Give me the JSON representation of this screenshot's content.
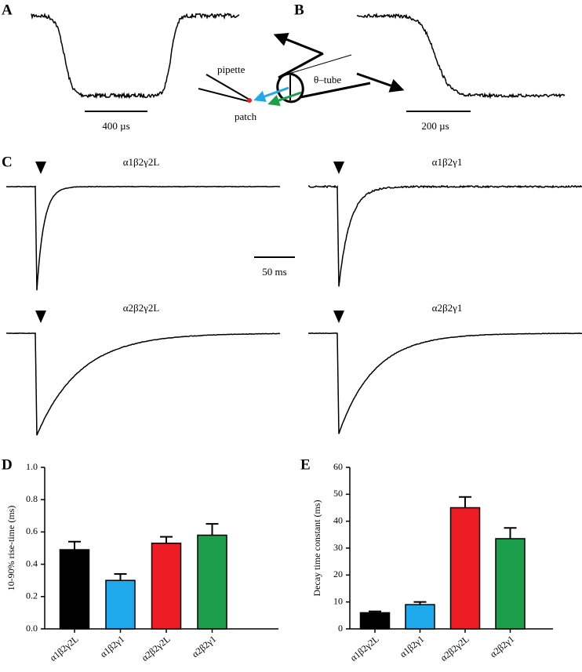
{
  "panel_labels": [
    "A",
    "B",
    "C",
    "D",
    "E"
  ],
  "diagram": {
    "pipette": "pipette",
    "patch": "patch",
    "tube": "θ–tube"
  },
  "scale_bars": [
    "400 µs",
    "200 µs",
    "50 ms"
  ],
  "traces": [
    "α1β2γ2L",
    "α1β2γ1",
    "α2β2γ2L",
    "α2β2γ1"
  ],
  "chart_data": [
    {
      "type": "bar",
      "ylabel": "10-90% rise-time (ms)",
      "categories": [
        "α1β2γ2L",
        "α1β2γ1",
        "α2β2γ2L",
        "α2β2γ1"
      ],
      "values": [
        0.49,
        0.3,
        0.53,
        0.58
      ],
      "errors": [
        0.05,
        0.04,
        0.04,
        0.07
      ],
      "colors": [
        "#000000",
        "#1fa9ec",
        "#ee1c25",
        "#1c9f4a"
      ],
      "ylim": [
        0,
        1.0
      ],
      "yticks": [
        {
          "value": 0,
          "label": "0.0"
        },
        0.2,
        0.4,
        0.6,
        0.8,
        {
          "value": 1.0,
          "label": "1.0"
        }
      ]
    },
    {
      "type": "bar",
      "ylabel": "Decay time constant (ms)",
      "categories": [
        "α1β2γ2L",
        "α1β2γ1",
        "α2β2γ2L",
        "α2β2γ1"
      ],
      "values": [
        6,
        9,
        45,
        33.5
      ],
      "errors": [
        0.5,
        1,
        4,
        4
      ],
      "colors": [
        "#000000",
        "#1fa9ec",
        "#ee1c25",
        "#1c9f4a"
      ],
      "ylim": [
        0,
        60
      ],
      "yticks": [
        0,
        10,
        20,
        30,
        40,
        50,
        60
      ]
    }
  ]
}
